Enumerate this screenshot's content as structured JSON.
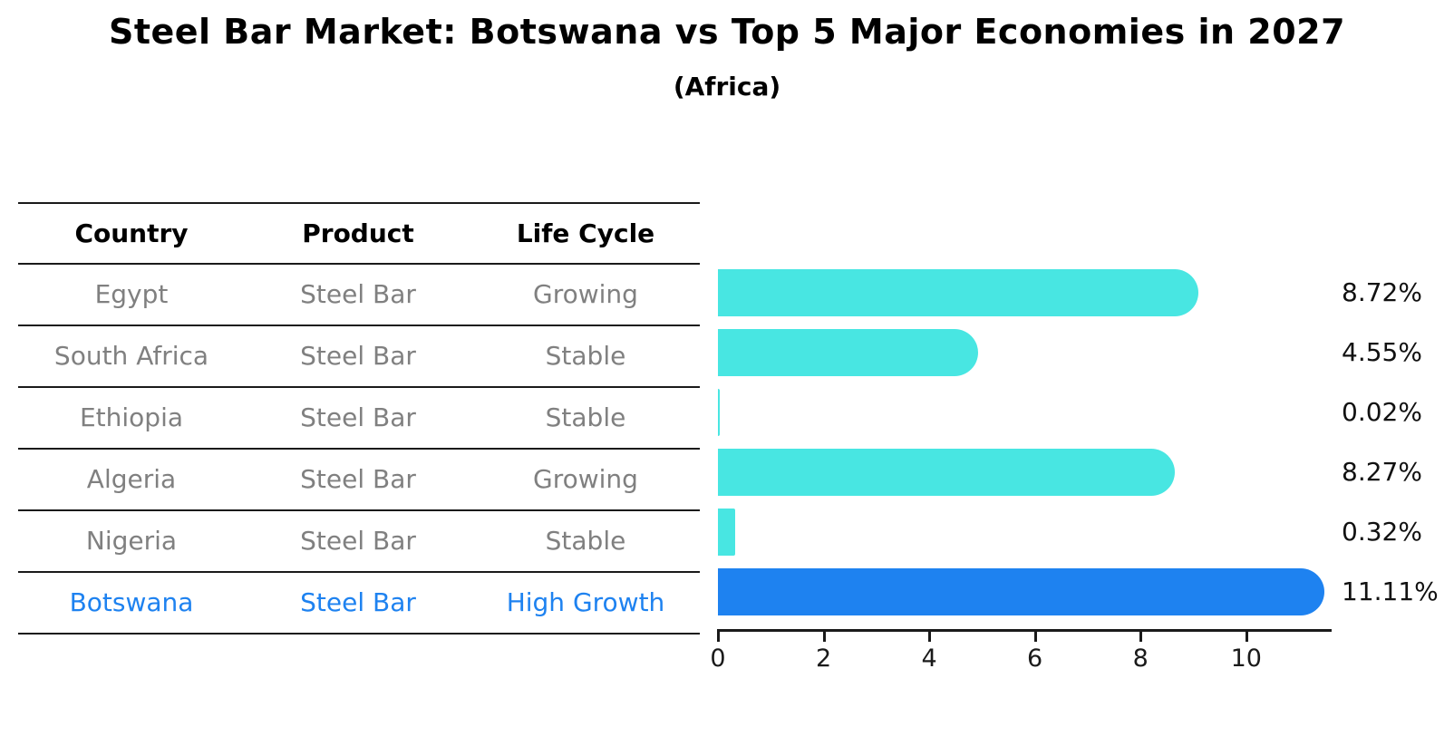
{
  "title": "Steel Bar Market: Botswana vs Top 5 Major Economies in 2027",
  "subtitle": "(Africa)",
  "table": {
    "headers": [
      "Country",
      "Product",
      "Life Cycle"
    ],
    "rows": [
      {
        "country": "Egypt",
        "product": "Steel Bar",
        "life_cycle": "Growing",
        "highlight": false
      },
      {
        "country": "South Africa",
        "product": "Steel Bar",
        "life_cycle": "Stable",
        "highlight": false
      },
      {
        "country": "Ethiopia",
        "product": "Steel Bar",
        "life_cycle": "Stable",
        "highlight": false
      },
      {
        "country": "Algeria",
        "product": "Steel Bar",
        "life_cycle": "Growing",
        "highlight": false
      },
      {
        "country": "Nigeria",
        "product": "Steel Bar",
        "life_cycle": "Stable",
        "highlight": false
      },
      {
        "country": "Botswana",
        "product": "Steel Bar",
        "life_cycle": "High Growth",
        "highlight": true
      }
    ]
  },
  "chart_data": {
    "type": "bar",
    "orientation": "horizontal",
    "title": "Steel Bar Market: Botswana vs Top 5 Major Economies in 2027 (Africa)",
    "categories": [
      "Egypt",
      "South Africa",
      "Ethiopia",
      "Algeria",
      "Nigeria",
      "Botswana"
    ],
    "values": [
      8.72,
      4.55,
      0.02,
      8.27,
      0.32,
      11.11
    ],
    "value_labels": [
      "8.72%",
      "4.55%",
      "0.02%",
      "8.27%",
      "0.32%",
      "11.11%"
    ],
    "x_ticks": [
      "0",
      "2",
      "4",
      "6",
      "8",
      "10"
    ],
    "xlim": [
      0,
      11.6
    ],
    "grid": false,
    "legend": false,
    "bar_color": "#48E6E2",
    "highlight_bar_color": "#1E82F0",
    "highlight_index": 5
  },
  "colors": {
    "bar_cyan": "#48E6E2",
    "bar_blue": "#1E82F0",
    "highlight_text": "#1E82F0",
    "table_text": "#808080",
    "header_text": "#000000",
    "line": "#1a1a1a"
  }
}
